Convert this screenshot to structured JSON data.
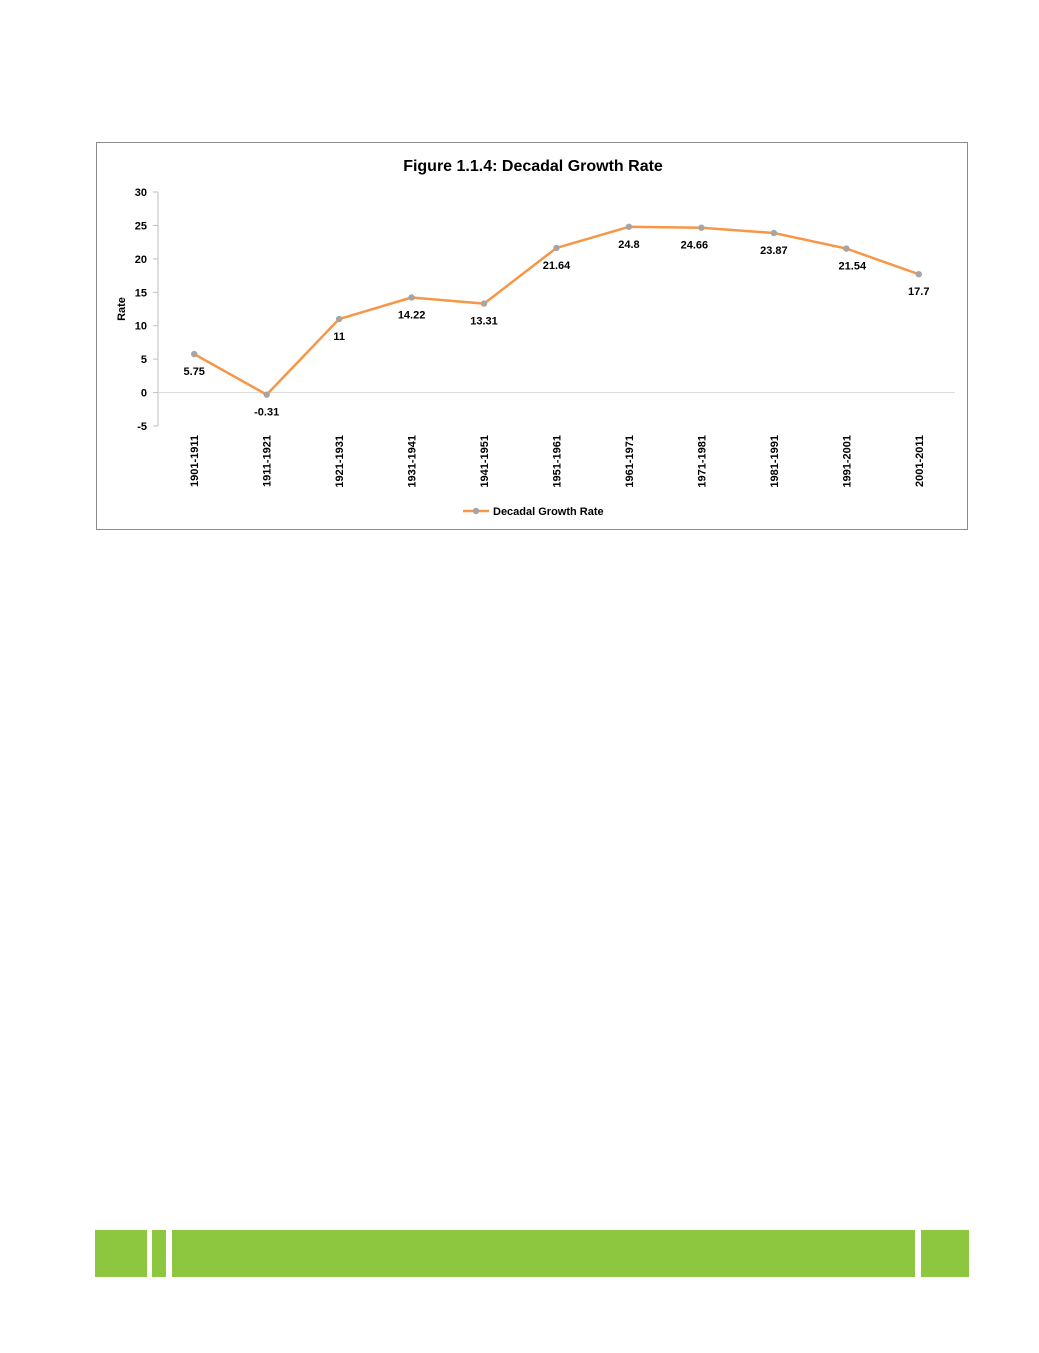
{
  "chart_data": {
    "type": "line",
    "title": "Figure 1.1.4: Decadal Growth Rate",
    "xlabel": "",
    "ylabel": "Rate",
    "ylim": [
      -5,
      30
    ],
    "yticks": [
      "30",
      "25",
      "20",
      "15",
      "10",
      "5",
      "0",
      "-5"
    ],
    "categories": [
      "1901-1911",
      "1911-1921",
      "1921-1931",
      "1931-1941",
      "1941-1951",
      "1951-1961",
      "1961-1971",
      "1971-1981",
      "1981-1991",
      "1991-2001",
      "2001-2011"
    ],
    "series": [
      {
        "name": "Decadal Growth Rate",
        "values": [
          5.75,
          -0.31,
          11,
          14.22,
          13.31,
          21.64,
          24.8,
          24.66,
          23.87,
          21.54,
          17.7
        ],
        "labels": [
          "5.75",
          "-0.31",
          "11",
          "14.22",
          "13.31",
          "21.64",
          "24.8",
          "24.66",
          "23.87",
          "21.54",
          "17.7"
        ],
        "line_color": "#f79646",
        "marker_color": "#a5a5a5"
      }
    ],
    "grid": false,
    "legend": "bottom"
  },
  "colors": {
    "footer_green": "#8dc63f",
    "frame_border": "#8c8c8c"
  }
}
